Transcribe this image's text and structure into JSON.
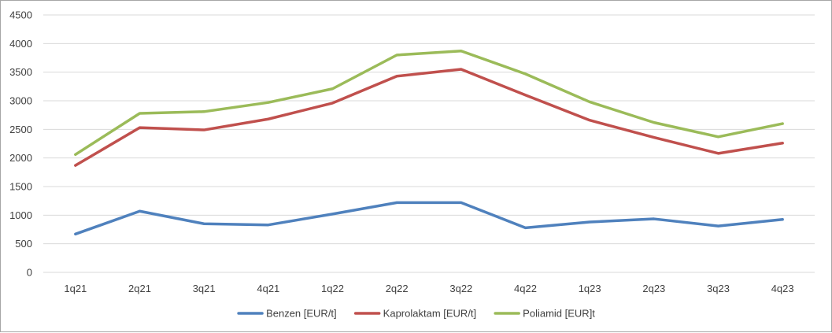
{
  "chart_data": {
    "type": "line",
    "title": "",
    "xlabel": "",
    "ylabel": "",
    "categories": [
      "1q21",
      "2q21",
      "3q21",
      "4q21",
      "1q22",
      "2q22",
      "3q22",
      "4q22",
      "1q23",
      "2q23",
      "3q23",
      "4q23"
    ],
    "ylim": [
      0,
      4500
    ],
    "yticks": [
      0,
      500,
      1000,
      1500,
      2000,
      2500,
      3000,
      3500,
      4000,
      4500
    ],
    "grid": "horizontal",
    "legend_position": "bottom",
    "series": [
      {
        "name": "Benzen [EUR/t]",
        "color": "#4f81bd",
        "values": [
          670,
          1070,
          850,
          830,
          1020,
          1220,
          1220,
          780,
          880,
          935,
          810,
          925
        ]
      },
      {
        "name": "Kaprolaktam [EUR/t]",
        "color": "#c0504d",
        "values": [
          1870,
          2530,
          2490,
          2680,
          2960,
          3430,
          3550,
          3100,
          2660,
          2360,
          2080,
          2260
        ]
      },
      {
        "name": "Poliamid [EUR]t",
        "color": "#9bbb59",
        "values": [
          2060,
          2780,
          2810,
          2970,
          3210,
          3800,
          3870,
          3470,
          2980,
          2620,
          2370,
          2600
        ]
      }
    ]
  }
}
